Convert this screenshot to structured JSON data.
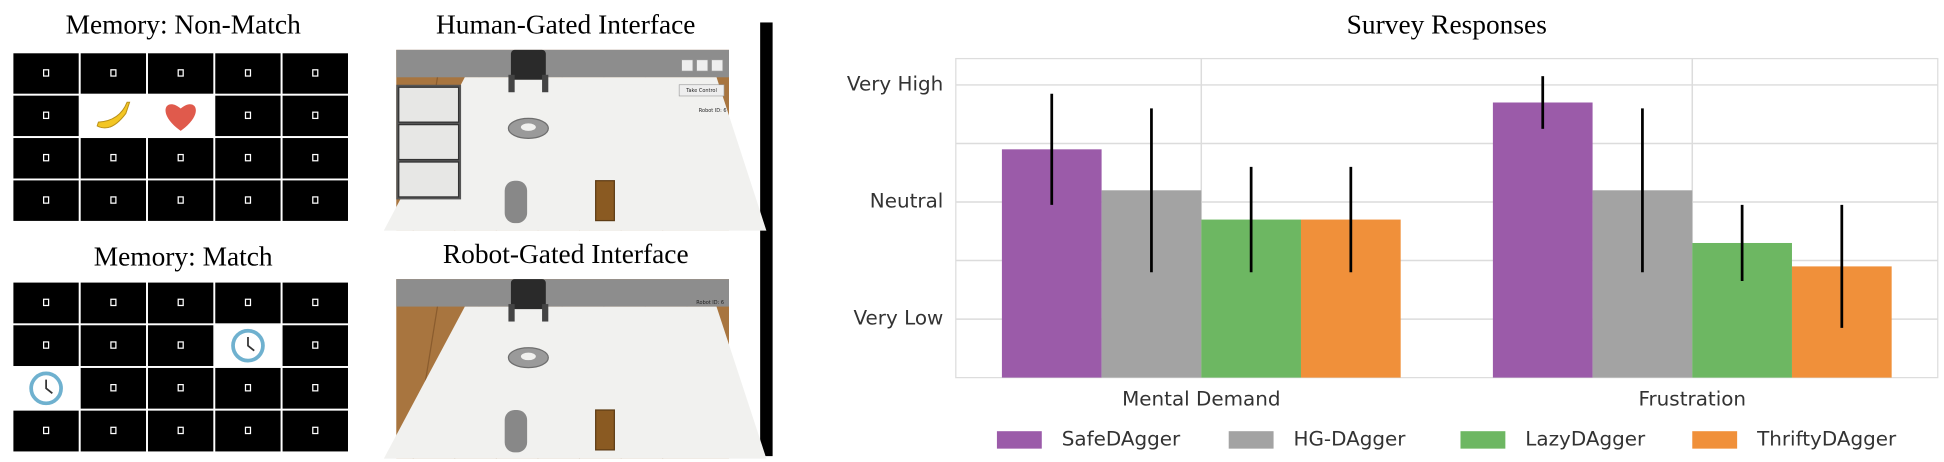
{
  "panels": {
    "memory_non_match": {
      "title": "Memory: Non-Match"
    },
    "memory_match": {
      "title": "Memory: Match"
    },
    "human_gated": {
      "title": "Human-Gated Interface",
      "labels": [
        "Take Control",
        "Robot ID: 6"
      ]
    },
    "robot_gated": {
      "title": "Robot-Gated Interface",
      "labels": [
        "Robot ID: 6"
      ]
    }
  },
  "chart_data": {
    "type": "bar",
    "title": "Survey Responses",
    "categories": [
      "Mental Demand",
      "Frustration"
    ],
    "series": [
      {
        "name": "SafeDAgger",
        "color": "#9b5ba9",
        "values": [
          3.9,
          4.7
        ],
        "errors": [
          0.95,
          0.45
        ]
      },
      {
        "name": "HG-DAgger",
        "color": "#a3a3a3",
        "values": [
          3.2,
          3.2
        ],
        "errors": [
          1.4,
          1.4
        ]
      },
      {
        "name": "LazyDAgger",
        "color": "#6db762",
        "values": [
          2.7,
          2.3
        ],
        "errors": [
          0.9,
          0.65
        ]
      },
      {
        "name": "ThriftyDAgger",
        "color": "#f0903a",
        "values": [
          2.7,
          1.9
        ],
        "errors": [
          0.9,
          1.05
        ]
      }
    ],
    "ylim": [
      0,
      5.45
    ],
    "yticks": [
      {
        "value": 1,
        "label": "Very Low"
      },
      {
        "value": 3,
        "label": "Neutral"
      },
      {
        "value": 5,
        "label": "Very High"
      }
    ],
    "grid_lines": [
      1,
      2,
      3,
      4,
      5
    ],
    "grid": true,
    "legend": "bottom"
  }
}
